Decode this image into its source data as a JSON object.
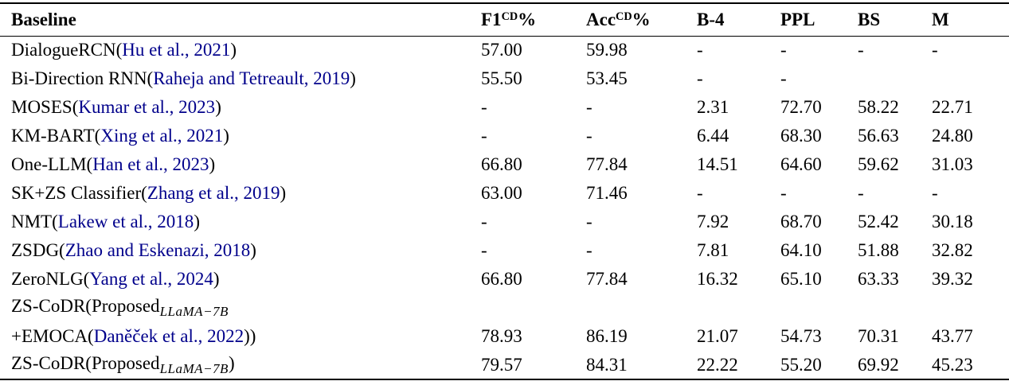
{
  "colors": {
    "background": "#ffffff",
    "text": "#000000",
    "citation": "#00008B",
    "rule": "#000000"
  },
  "table": {
    "header": {
      "baseline_label": "Baseline",
      "metrics": [
        {
          "label": "F1",
          "sup": "CD",
          "suffix": "%"
        },
        {
          "label": "Acc",
          "sup": "CD",
          "suffix": "%"
        },
        {
          "label": "B-4",
          "sup": "",
          "suffix": ""
        },
        {
          "label": "PPL",
          "sup": "",
          "suffix": ""
        },
        {
          "label": "BS",
          "sup": "",
          "suffix": ""
        },
        {
          "label": "M",
          "sup": "",
          "suffix": ""
        }
      ]
    },
    "rows": [
      {
        "name": [
          {
            "t": "DialogueRCN("
          },
          {
            "c": "Hu et al., 2021"
          },
          {
            "t": ")"
          }
        ],
        "values": [
          {
            "v": "57.00"
          },
          {
            "v": "59.98"
          },
          {
            "v": "-"
          },
          {
            "v": "-"
          },
          {
            "v": "-"
          },
          {
            "v": "-"
          }
        ]
      },
      {
        "name": [
          {
            "t": "Bi-Direction RNN("
          },
          {
            "c": "Raheja and Tetreault, 2019"
          },
          {
            "t": ")"
          }
        ],
        "values": [
          {
            "v": "55.50"
          },
          {
            "v": "53.45"
          },
          {
            "v": "-"
          },
          {
            "v": "-"
          },
          {
            "v": ""
          },
          {
            "v": ""
          }
        ]
      },
      {
        "name": [
          {
            "t": "MOSES("
          },
          {
            "c": "Kumar et al., 2023"
          },
          {
            "t": ")"
          }
        ],
        "values": [
          {
            "v": "-"
          },
          {
            "v": "-"
          },
          {
            "v": "2.31"
          },
          {
            "v": "72.70"
          },
          {
            "v": "58.22"
          },
          {
            "v": "22.71"
          }
        ]
      },
      {
        "name": [
          {
            "t": "KM-BART("
          },
          {
            "c": "Xing et al., 2021"
          },
          {
            "t": ")"
          }
        ],
        "values": [
          {
            "v": "-"
          },
          {
            "v": "-"
          },
          {
            "v": "6.44"
          },
          {
            "v": "68.30"
          },
          {
            "v": "56.63"
          },
          {
            "v": "24.80"
          }
        ]
      },
      {
        "name": [
          {
            "t": "One-LLM("
          },
          {
            "c": "Han et al., 2023"
          },
          {
            "t": ")"
          }
        ],
        "values": [
          {
            "v": "66.80"
          },
          {
            "v": "77.84"
          },
          {
            "v": "14.51"
          },
          {
            "v": "64.60"
          },
          {
            "v": "59.62"
          },
          {
            "v": "31.03"
          }
        ]
      },
      {
        "name": [
          {
            "t": "SK+ZS Classifier("
          },
          {
            "c": "Zhang et al., 2019"
          },
          {
            "t": ")"
          }
        ],
        "values": [
          {
            "v": "63.00"
          },
          {
            "v": "71.46"
          },
          {
            "v": "-"
          },
          {
            "v": "-"
          },
          {
            "v": "-"
          },
          {
            "v": "-"
          }
        ]
      },
      {
        "name": [
          {
            "t": "NMT("
          },
          {
            "c": "Lakew et al., 2018"
          },
          {
            "t": ")"
          }
        ],
        "values": [
          {
            "v": "-"
          },
          {
            "v": "-"
          },
          {
            "v": "7.92"
          },
          {
            "v": "68.70"
          },
          {
            "v": "52.42"
          },
          {
            "v": "30.18"
          }
        ]
      },
      {
        "name": [
          {
            "t": "ZSDG("
          },
          {
            "c": "Zhao and Eskenazi, 2018"
          },
          {
            "t": ")"
          }
        ],
        "values": [
          {
            "v": "-"
          },
          {
            "v": "-"
          },
          {
            "v": "7.81"
          },
          {
            "v": "64.10"
          },
          {
            "v": "51.88"
          },
          {
            "v": "32.82"
          }
        ]
      },
      {
        "name": [
          {
            "t": "ZeroNLG("
          },
          {
            "c": "Yang et al., 2024"
          },
          {
            "t": ")"
          }
        ],
        "values": [
          {
            "v": "66.80"
          },
          {
            "v": "77.84"
          },
          {
            "v": "16.32"
          },
          {
            "v": "65.10"
          },
          {
            "v": "63.33"
          },
          {
            "v": "39.32"
          }
        ]
      },
      {
        "name": [
          {
            "t": "ZS-CoDR(Proposed"
          },
          {
            "s": "LLaMA−7B"
          }
        ],
        "values": [
          {
            "v": ""
          },
          {
            "v": ""
          },
          {
            "v": ""
          },
          {
            "v": ""
          },
          {
            "v": ""
          },
          {
            "v": ""
          }
        ]
      },
      {
        "name": [
          {
            "t": "+EMOCA("
          },
          {
            "c": "Daněček et al., 2022"
          },
          {
            "t": "))"
          }
        ],
        "values": [
          {
            "v": "78.93"
          },
          {
            "v": "86.19",
            "b": true
          },
          {
            "v": "21.07"
          },
          {
            "v": "54.73",
            "b": true
          },
          {
            "v": "70.31",
            "b": true
          },
          {
            "v": "43.77"
          }
        ]
      },
      {
        "name": [
          {
            "t": "ZS-CoDR(Proposed"
          },
          {
            "s": "LLaMA−7B"
          },
          {
            "t": ")"
          }
        ],
        "values": [
          {
            "v": "79.57",
            "b": true
          },
          {
            "v": "84.31"
          },
          {
            "v": "22.22",
            "b": true
          },
          {
            "v": "55.20"
          },
          {
            "v": "69.92"
          },
          {
            "v": "45.23",
            "b": true
          }
        ]
      }
    ]
  }
}
